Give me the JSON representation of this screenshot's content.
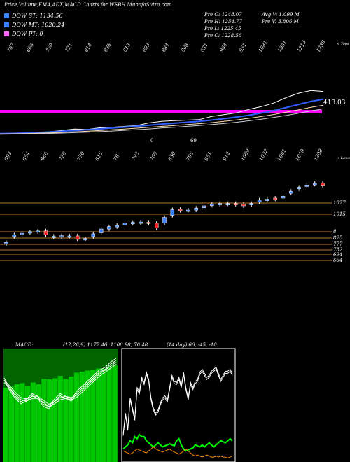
{
  "header": {
    "title": "Price,Volume,EMA,ADX,MACD Charts for WSBH MunafaSutra.com"
  },
  "legend": [
    {
      "label": "DOW ST: 1134.56",
      "color": "#3a82ff"
    },
    {
      "label": "DOW MT: 1020.24",
      "color": "#3a82ff"
    },
    {
      "label": "DOW PT: 0",
      "color": "#ff66ff"
    }
  ],
  "stats": {
    "col1": [
      "Pre  O: 1248.07",
      "Pre  H: 1254.77",
      "Pre  L: 1225.45",
      "Pre  C: 1228.56"
    ],
    "col2": [
      "Avg V: 1.099 M",
      "Pre  V: 3.806  M"
    ]
  },
  "panel_labels": {
    "top_right": "< Tops",
    "lows_right": "< Lows",
    "pink_value": "413.03"
  },
  "chart_data": [
    {
      "type": "line",
      "name": "ema-overview",
      "top_tick_labels": [
        "767",
        "666",
        "750",
        "721",
        "814",
        "836",
        "813",
        "803",
        "884",
        "808",
        "831",
        "964",
        "951",
        "1081",
        "1081",
        "1213",
        "1236"
      ],
      "bottom_tick_labels": [
        "0",
        "69"
      ],
      "magenta_line": 413.03,
      "series": [
        {
          "color": "#ffffff",
          "values": [
            100,
            98,
            102,
            108,
            110,
            118,
            125,
            123,
            132,
            135,
            140,
            145,
            160,
            168,
            172,
            175,
            178,
            195,
            205,
            215,
            235,
            250,
            270,
            300,
            325,
            340,
            335
          ]
        },
        {
          "color": "#3060ff",
          "values": [
            100,
            101,
            103,
            106,
            109,
            113,
            117,
            121,
            126,
            131,
            136,
            141,
            147,
            153,
            158,
            163,
            168,
            175,
            183,
            192,
            202,
            214,
            228,
            245,
            262,
            279,
            292
          ]
        },
        {
          "color": "#ffe4b5",
          "values": [
            98,
            99,
            100,
            102,
            104,
            107,
            110,
            113,
            117,
            121,
            125,
            130,
            135,
            140,
            145,
            150,
            155,
            161,
            168,
            176,
            185,
            195,
            206,
            219,
            232,
            246,
            258
          ]
        },
        {
          "color": "#cccccc",
          "values": [
            96,
            97,
            98,
            99,
            101,
            103,
            105,
            108,
            111,
            114,
            118,
            122,
            126,
            131,
            135,
            140,
            145,
            150,
            156,
            163,
            171,
            180,
            190,
            201,
            213,
            226,
            238
          ]
        }
      ]
    },
    {
      "type": "candlestick",
      "name": "price-candles",
      "top_tick_labels": [
        "692",
        "654",
        "666",
        "720",
        "770",
        "815",
        "78",
        "793",
        "769",
        "830",
        "795",
        "951",
        "912",
        "1009",
        "1032",
        "1081",
        "1059",
        "1208"
      ],
      "right_labels": [
        "1077",
        "1015",
        "8",
        "825",
        "777",
        "782",
        "694",
        "654"
      ],
      "candles": [
        {
          "o": 654,
          "c": 660,
          "up": true
        },
        {
          "o": 690,
          "c": 700,
          "up": true
        },
        {
          "o": 700,
          "c": 708,
          "up": true
        },
        {
          "o": 710,
          "c": 716,
          "up": true
        },
        {
          "o": 715,
          "c": 720,
          "up": true
        },
        {
          "o": 720,
          "c": 700,
          "up": false
        },
        {
          "o": 690,
          "c": 692,
          "up": true
        },
        {
          "o": 690,
          "c": 695,
          "up": true
        },
        {
          "o": 692,
          "c": 694,
          "up": true
        },
        {
          "o": 694,
          "c": 676,
          "up": false
        },
        {
          "o": 676,
          "c": 680,
          "up": true
        },
        {
          "o": 690,
          "c": 705,
          "up": true
        },
        {
          "o": 710,
          "c": 730,
          "up": true
        },
        {
          "o": 730,
          "c": 742,
          "up": true
        },
        {
          "o": 742,
          "c": 748,
          "up": true
        },
        {
          "o": 750,
          "c": 760,
          "up": true
        },
        {
          "o": 760,
          "c": 764,
          "up": true
        },
        {
          "o": 762,
          "c": 766,
          "up": true
        },
        {
          "o": 765,
          "c": 760,
          "up": false
        },
        {
          "o": 760,
          "c": 735,
          "up": false
        },
        {
          "o": 760,
          "c": 790,
          "up": true
        },
        {
          "o": 800,
          "c": 830,
          "up": true
        },
        {
          "o": 832,
          "c": 826,
          "up": false
        },
        {
          "o": 826,
          "c": 828,
          "up": true
        },
        {
          "o": 828,
          "c": 838,
          "up": true
        },
        {
          "o": 840,
          "c": 850,
          "up": true
        },
        {
          "o": 852,
          "c": 858,
          "up": true
        },
        {
          "o": 858,
          "c": 862,
          "up": true
        },
        {
          "o": 860,
          "c": 862,
          "up": true
        },
        {
          "o": 862,
          "c": 858,
          "up": false
        },
        {
          "o": 858,
          "c": 850,
          "up": false
        },
        {
          "o": 855,
          "c": 862,
          "up": true
        },
        {
          "o": 870,
          "c": 880,
          "up": true
        },
        {
          "o": 880,
          "c": 884,
          "up": true
        },
        {
          "o": 890,
          "c": 885,
          "up": false
        },
        {
          "o": 890,
          "c": 900,
          "up": true
        },
        {
          "o": 915,
          "c": 925,
          "up": true
        },
        {
          "o": 938,
          "c": 946,
          "up": true
        },
        {
          "o": 950,
          "c": 958,
          "up": true
        },
        {
          "o": 962,
          "c": 966,
          "up": true
        },
        {
          "o": 968,
          "c": 956,
          "up": false
        }
      ]
    },
    {
      "type": "line",
      "name": "macd",
      "label": "MACD:",
      "params": "(12,26,9) 1177.46,  1106.98,  70.48",
      "series": [
        {
          "color": "#ffffff",
          "values": [
            0.2,
            -0.2,
            -0.5,
            -0.7,
            -0.6,
            -0.4,
            -0.5,
            -0.8,
            -0.9,
            -0.6,
            -0.4,
            -0.5,
            -0.6,
            -0.3,
            -0.1,
            0.1,
            0.3,
            0.5,
            0.6,
            0.8,
            0.95
          ]
        },
        {
          "color": "#ffffff",
          "values": [
            0.1,
            -0.1,
            -0.35,
            -0.55,
            -0.6,
            -0.5,
            -0.5,
            -0.65,
            -0.8,
            -0.7,
            -0.55,
            -0.5,
            -0.55,
            -0.45,
            -0.25,
            -0.05,
            0.15,
            0.35,
            0.5,
            0.65,
            0.8
          ]
        }
      ],
      "histogram": [
        0.1,
        0.1,
        0.15,
        0.15,
        0.0,
        0.1,
        0.0,
        0.15,
        0.1,
        0.1,
        0.15,
        0.0,
        0.05,
        0.15,
        0.15,
        0.15,
        0.15,
        0.15,
        0.1,
        0.15,
        0.15
      ]
    },
    {
      "type": "line",
      "name": "adx",
      "label": "(14  day) 66,  -45,  -10",
      "series": [
        {
          "color": "#ffffff",
          "values": [
            25,
            45,
            30,
            60,
            50,
            40,
            70,
            66,
            80,
            75,
            85,
            78,
            60,
            50,
            45,
            48,
            55,
            60,
            62,
            58,
            70,
            82,
            76,
            75,
            80,
            72,
            85,
            70,
            60,
            75,
            70,
            76,
            78,
            85,
            88,
            84,
            80,
            82,
            86,
            88,
            90,
            84,
            78,
            82,
            86,
            86,
            88,
            84
          ]
        },
        {
          "color": "#00ff00",
          "values": [
            10,
            12,
            14,
            18,
            16,
            22,
            20,
            24,
            22,
            22,
            18,
            16,
            14,
            12,
            14,
            16,
            14,
            12,
            13,
            14,
            15,
            14,
            13,
            18,
            20,
            14,
            10,
            8,
            9,
            10,
            11,
            14,
            13,
            12,
            14,
            12,
            14,
            16,
            14,
            12,
            14,
            16,
            18,
            17,
            16,
            18,
            20,
            18
          ]
        },
        {
          "color": "#ff8c00",
          "values": [
            8,
            7,
            6,
            5,
            6,
            8,
            10,
            9,
            8,
            7,
            6,
            8,
            10,
            12,
            10,
            9,
            8,
            7,
            8,
            9,
            10,
            8,
            7,
            6,
            5,
            6,
            8,
            10,
            8,
            6,
            4,
            3,
            4,
            3,
            2,
            3,
            4,
            3,
            2,
            2,
            3,
            2,
            3,
            2,
            2,
            1,
            2,
            3
          ]
        }
      ]
    }
  ]
}
